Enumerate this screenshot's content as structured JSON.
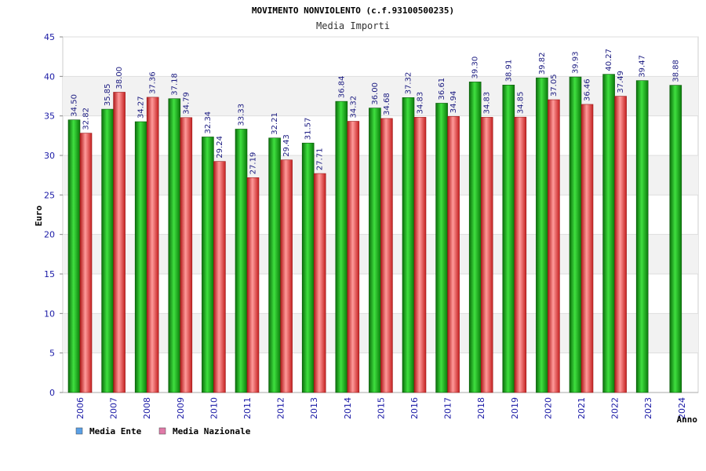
{
  "chart_data": {
    "type": "bar",
    "title": "MOVIMENTO NONVIOLENTO (c.f.93100500235)",
    "subtitle": "Media Importi",
    "xlabel": "Anno",
    "ylabel": "Euro",
    "ylim": [
      0,
      45
    ],
    "yticks": [
      0,
      5,
      10,
      15,
      20,
      25,
      30,
      35,
      40,
      45
    ],
    "grid": true,
    "legend_position": "bottom-left",
    "categories": [
      "2006",
      "2007",
      "2008",
      "2009",
      "2010",
      "2011",
      "2012",
      "2013",
      "2014",
      "2015",
      "2016",
      "2017",
      "2018",
      "2019",
      "2020",
      "2021",
      "2022",
      "2023",
      "2024"
    ],
    "series": [
      {
        "name": "Media Ente",
        "color": "#1fa51f",
        "legend_color": "#5aa0e6",
        "values": [
          34.5,
          35.85,
          34.27,
          37.18,
          32.34,
          33.33,
          32.21,
          31.57,
          36.84,
          36.0,
          37.32,
          36.61,
          39.3,
          38.91,
          39.82,
          39.93,
          40.27,
          39.47,
          38.88
        ],
        "labels": [
          "34.50",
          "35.85",
          "34.27",
          "37.18",
          "32.34",
          "33.33",
          "32.21",
          "31.57",
          "36.84",
          "36.00",
          "37.32",
          "36.61",
          "39.30",
          "38.91",
          "39.82",
          "39.93",
          "40.27",
          "39.47",
          "38.88"
        ]
      },
      {
        "name": "Media Nazionale",
        "color": "#e23b3b",
        "legend_color": "#e07aa8",
        "values": [
          32.82,
          38.0,
          37.36,
          34.79,
          29.24,
          27.19,
          29.43,
          27.71,
          34.32,
          34.68,
          34.83,
          34.94,
          34.83,
          34.85,
          37.05,
          36.46,
          37.49,
          null,
          null
        ],
        "labels": [
          "32.82",
          "38.00",
          "37.36",
          "34.79",
          "29.24",
          "27.19",
          "29.43",
          "27.71",
          "34.32",
          "34.68",
          "34.83",
          "34.94",
          "34.83",
          "34.85",
          "37.05",
          "36.46",
          "37.49",
          null,
          null
        ]
      }
    ]
  }
}
